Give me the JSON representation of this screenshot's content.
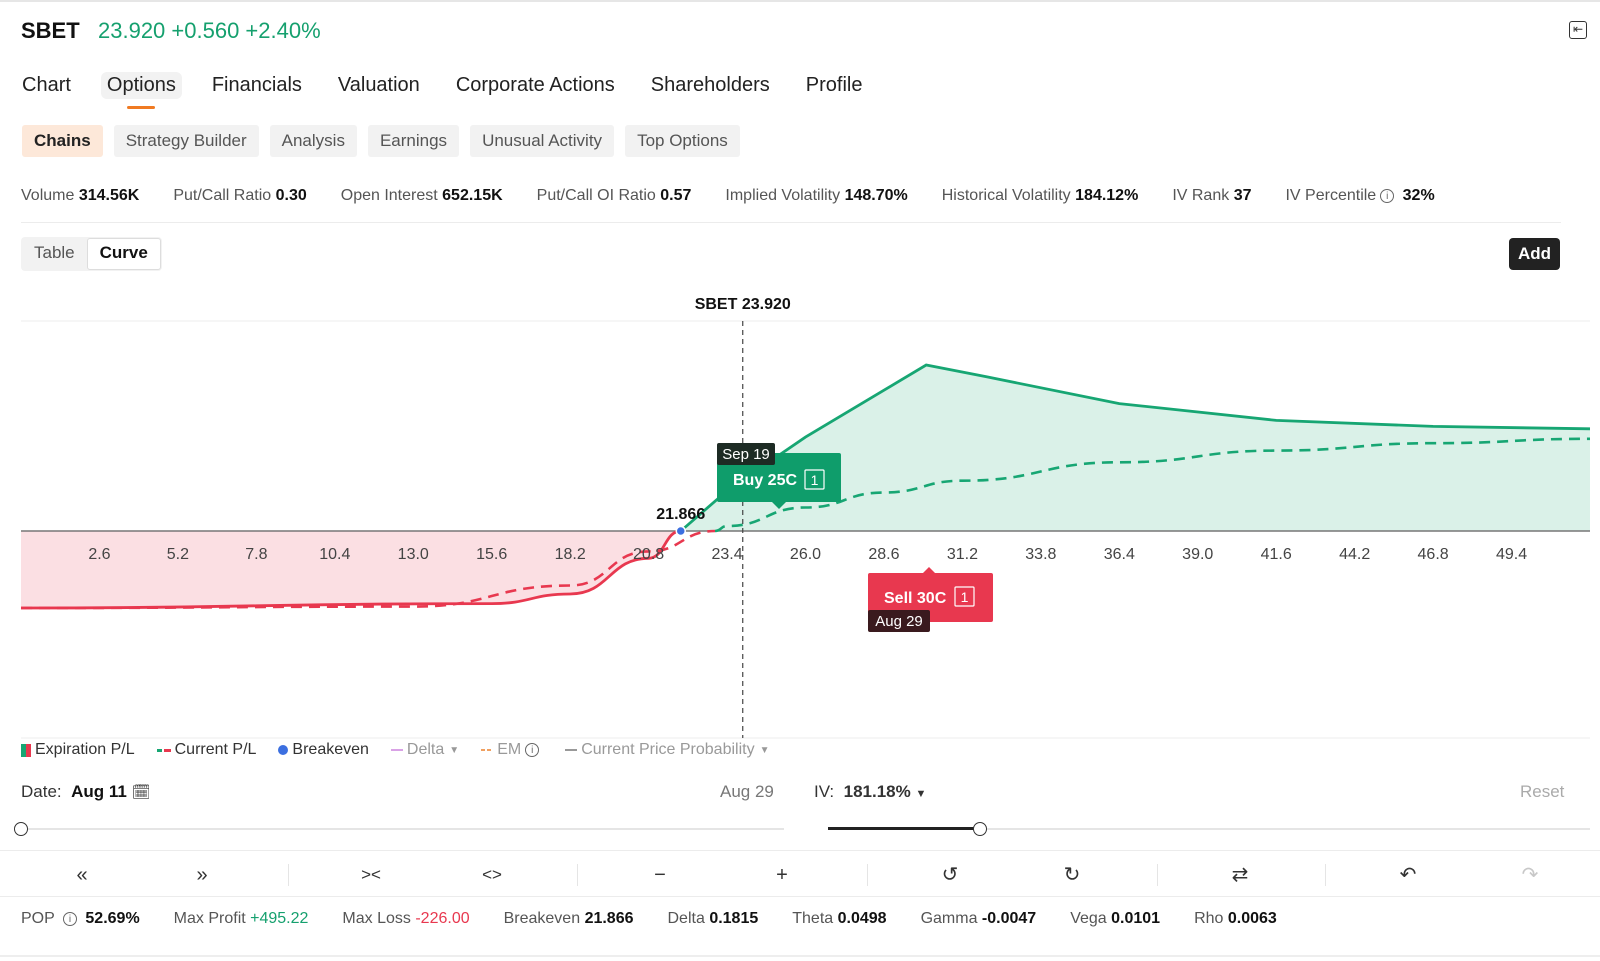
{
  "header": {
    "ticker": "SBET",
    "quote": "23.920 +0.560 +2.40%",
    "expand_icon": "collapse-panel-icon"
  },
  "nav_tabs": [
    {
      "label": "Chart",
      "active": false
    },
    {
      "label": "Options",
      "active": true
    },
    {
      "label": "Financials",
      "active": false
    },
    {
      "label": "Valuation",
      "active": false
    },
    {
      "label": "Corporate Actions",
      "active": false
    },
    {
      "label": "Shareholders",
      "active": false
    },
    {
      "label": "Profile",
      "active": false
    }
  ],
  "sub_tabs": [
    {
      "label": "Chains",
      "active": true
    },
    {
      "label": "Strategy Builder",
      "active": false
    },
    {
      "label": "Analysis",
      "active": false
    },
    {
      "label": "Earnings",
      "active": false
    },
    {
      "label": "Unusual Activity",
      "active": false
    },
    {
      "label": "Top Options",
      "active": false
    }
  ],
  "stats": [
    {
      "label": "Volume",
      "value": "314.56K"
    },
    {
      "label": "Put/Call Ratio",
      "value": "0.30"
    },
    {
      "label": "Open Interest",
      "value": "652.15K"
    },
    {
      "label": "Put/Call OI Ratio",
      "value": "0.57"
    },
    {
      "label": "Implied Volatility",
      "value": "148.70%"
    },
    {
      "label": "Historical Volatility",
      "value": "184.12%"
    },
    {
      "label": "IV Rank",
      "value": "37"
    },
    {
      "label": "IV Percentile",
      "value": "32%",
      "info": true
    }
  ],
  "view_toggle": {
    "table": "Table",
    "curve": "Curve",
    "active": "Curve"
  },
  "add_button": "Add",
  "chart_data": {
    "type": "line",
    "price_marker_label": "SBET 23.920",
    "current_price": 23.92,
    "x_ticks": [
      "2.6",
      "5.2",
      "7.8",
      "10.4",
      "13.0",
      "15.6",
      "18.2",
      "20.8",
      "23.4",
      "26.0",
      "28.6",
      "31.2",
      "33.8",
      "36.4",
      "39.0",
      "41.6",
      "44.2",
      "46.8",
      "49.4"
    ],
    "xlim": [
      0,
      52.0
    ],
    "ylim": [
      -226,
      495.22
    ],
    "breakeven": {
      "x": 21.866,
      "label": "21.866"
    },
    "series": [
      {
        "name": "Expiration P/L",
        "style": "solid",
        "points": [
          [
            0,
            -226
          ],
          [
            15.6,
            -213
          ],
          [
            18.2,
            -185
          ],
          [
            20.8,
            -80
          ],
          [
            21.866,
            0
          ],
          [
            23.4,
            120
          ],
          [
            26.0,
            280
          ],
          [
            28.6,
            420
          ],
          [
            30.0,
            495.22
          ],
          [
            32,
            460
          ],
          [
            36.4,
            380
          ],
          [
            41.6,
            330
          ],
          [
            46.8,
            312
          ],
          [
            52.0,
            305
          ]
        ]
      },
      {
        "name": "Current P/L",
        "style": "dashed",
        "points": [
          [
            0,
            -226
          ],
          [
            13,
            -222
          ],
          [
            18.2,
            -160
          ],
          [
            20.8,
            -60
          ],
          [
            23.4,
            15
          ],
          [
            26.0,
            70
          ],
          [
            28.6,
            115
          ],
          [
            31.2,
            150
          ],
          [
            36.4,
            205
          ],
          [
            41.6,
            240
          ],
          [
            46.8,
            262
          ],
          [
            52.0,
            275
          ]
        ]
      }
    ],
    "legs": [
      {
        "label": "Buy 25C",
        "qty": "1",
        "expiry": "Sep 19",
        "side": "buy"
      },
      {
        "label": "Sell 30C",
        "qty": "1",
        "expiry": "Aug 29",
        "side": "sell"
      }
    ],
    "colors": {
      "profit": "#17a673",
      "loss": "#e8384f",
      "breakeven": "#3b6fe0"
    }
  },
  "legend": [
    {
      "label": "Expiration P/L"
    },
    {
      "label": "Current P/L"
    },
    {
      "label": "Breakeven"
    },
    {
      "label": "Delta",
      "dropdown": true
    },
    {
      "label": "EM",
      "info": true
    },
    {
      "label": "Current Price Probability",
      "dropdown": true
    }
  ],
  "date_control": {
    "label": "Date:",
    "value": "Aug 11",
    "end_label": "Aug 29",
    "position": 0.0
  },
  "iv_control": {
    "label": "IV:",
    "value": "181.18%",
    "position": 0.2
  },
  "reset_label": "Reset",
  "greeks": [
    {
      "label": "POP",
      "value": "52.69%",
      "info": true,
      "tone": ""
    },
    {
      "label": "Max Profit",
      "value": "+495.22",
      "tone": "pos"
    },
    {
      "label": "Max Loss",
      "value": "-226.00",
      "tone": "neg"
    },
    {
      "label": "Breakeven",
      "value": "21.866",
      "tone": ""
    },
    {
      "label": "Delta",
      "value": "0.1815",
      "tone": ""
    },
    {
      "label": "Theta",
      "value": "0.0498",
      "tone": ""
    },
    {
      "label": "Gamma",
      "value": "-0.0047",
      "tone": ""
    },
    {
      "label": "Vega",
      "value": "0.0101",
      "tone": ""
    },
    {
      "label": "Rho",
      "value": "0.0063",
      "tone": ""
    }
  ]
}
